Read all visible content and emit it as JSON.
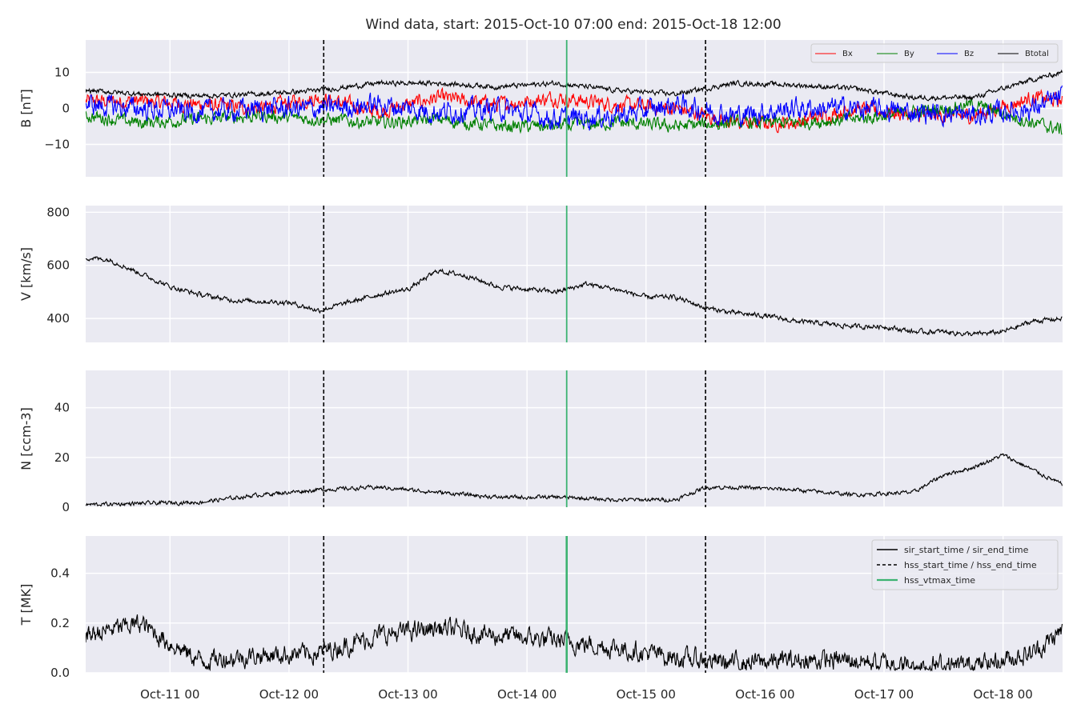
{
  "title": "Wind data, start: 2015-Oct-10 07:00  end: 2015-Oct-18 12:00",
  "colors": {
    "background": "#eaeaf2",
    "grid": "#ffffff",
    "bx": "#ff0000",
    "by": "#008000",
    "bz": "#0000ff",
    "btotal": "#000000",
    "vtmax": "#3cb371"
  },
  "x_axis": {
    "start": "2015-10-10T07:00",
    "end": "2015-10-18T12:00",
    "ticks": [
      {
        "t": "2015-10-11T00:00",
        "label": "Oct-11 00"
      },
      {
        "t": "2015-10-12T00:00",
        "label": "Oct-12 00"
      },
      {
        "t": "2015-10-13T00:00",
        "label": "Oct-13 00"
      },
      {
        "t": "2015-10-14T00:00",
        "label": "Oct-14 00"
      },
      {
        "t": "2015-10-15T00:00",
        "label": "Oct-15 00"
      },
      {
        "t": "2015-10-16T00:00",
        "label": "Oct-16 00"
      },
      {
        "t": "2015-10-17T00:00",
        "label": "Oct-17 00"
      },
      {
        "t": "2015-10-18T00:00",
        "label": "Oct-18 00"
      }
    ]
  },
  "events": {
    "hss_start_time": "2015-10-12T07:00",
    "hss_end_time": "2015-10-15T12:00",
    "hss_vtmax_time": "2015-10-14T08:00"
  },
  "chart_data": [
    {
      "type": "line",
      "ylabel": "B [nT]",
      "ylim": [
        -19,
        19
      ],
      "yticks": [
        10,
        0,
        -10
      ],
      "ytick_labels": [
        "10",
        "0",
        "−10"
      ],
      "grid": true,
      "legend": "top-right",
      "legend_entries": [
        "Bx",
        "By",
        "Bz",
        "Btotal"
      ],
      "series": [
        {
          "name": "Bx",
          "color": "#ff0000",
          "x": [
            "2015-10-10T07:00",
            "2015-10-10T18:00",
            "2015-10-11T06:00",
            "2015-10-11T18:00",
            "2015-10-12T06:00",
            "2015-10-12T18:00",
            "2015-10-13T06:00",
            "2015-10-13T18:00",
            "2015-10-14T06:00",
            "2015-10-14T18:00",
            "2015-10-15T06:00",
            "2015-10-15T18:00",
            "2015-10-16T06:00",
            "2015-10-16T18:00",
            "2015-10-17T06:00",
            "2015-10-17T18:00",
            "2015-10-18T06:00",
            "2015-10-18T12:00"
          ],
          "y": [
            2,
            2,
            1,
            0,
            3,
            -1,
            3,
            1,
            3,
            1,
            0,
            -4,
            -4,
            0,
            -2,
            -2,
            3,
            2
          ]
        },
        {
          "name": "By",
          "color": "#008000",
          "x": [
            "2015-10-10T07:00",
            "2015-10-10T18:00",
            "2015-10-11T06:00",
            "2015-10-11T18:00",
            "2015-10-12T06:00",
            "2015-10-12T18:00",
            "2015-10-13T06:00",
            "2015-10-13T18:00",
            "2015-10-14T06:00",
            "2015-10-14T18:00",
            "2015-10-15T06:00",
            "2015-10-15T18:00",
            "2015-10-16T06:00",
            "2015-10-16T18:00",
            "2015-10-17T06:00",
            "2015-10-17T18:00",
            "2015-10-18T06:00",
            "2015-10-18T12:00"
          ],
          "y": [
            -2,
            -4,
            -3,
            -2,
            -3,
            -4,
            -3,
            -5,
            -5,
            -4,
            -5,
            -4,
            -4,
            -3,
            -1,
            1,
            -4,
            -6
          ]
        },
        {
          "name": "Bz",
          "color": "#0000ff",
          "x": [
            "2015-10-10T07:00",
            "2015-10-10T18:00",
            "2015-10-11T06:00",
            "2015-10-11T18:00",
            "2015-10-12T06:00",
            "2015-10-12T18:00",
            "2015-10-13T06:00",
            "2015-10-13T18:00",
            "2015-10-14T06:00",
            "2015-10-14T18:00",
            "2015-10-15T06:00",
            "2015-10-15T18:00",
            "2015-10-16T06:00",
            "2015-10-16T18:00",
            "2015-10-17T06:00",
            "2015-10-17T18:00",
            "2015-10-18T06:00",
            "2015-10-18T12:00"
          ],
          "y": [
            1,
            0,
            -1,
            0,
            0,
            1,
            -1,
            0,
            -3,
            -2,
            1,
            -2,
            0,
            0,
            -1,
            -2,
            0,
            3
          ]
        },
        {
          "name": "Btotal",
          "color": "#000000",
          "x": [
            "2015-10-10T07:00",
            "2015-10-10T18:00",
            "2015-10-11T06:00",
            "2015-10-11T18:00",
            "2015-10-12T06:00",
            "2015-10-12T18:00",
            "2015-10-13T06:00",
            "2015-10-13T18:00",
            "2015-10-14T06:00",
            "2015-10-14T18:00",
            "2015-10-15T06:00",
            "2015-10-15T18:00",
            "2015-10-16T06:00",
            "2015-10-16T18:00",
            "2015-10-17T06:00",
            "2015-10-17T18:00",
            "2015-10-18T06:00",
            "2015-10-18T12:00"
          ],
          "y": [
            5,
            4,
            3.5,
            4,
            5,
            7,
            7,
            6,
            7,
            5,
            4,
            7,
            6.5,
            5.5,
            3,
            3,
            8,
            10
          ]
        }
      ]
    },
    {
      "type": "line",
      "ylabel": "V [km/s]",
      "ylim": [
        310,
        825
      ],
      "yticks": [
        800,
        600,
        400
      ],
      "ytick_labels": [
        "800",
        "600",
        "400"
      ],
      "grid": true,
      "series": [
        {
          "name": "V",
          "color": "#000000",
          "x": [
            "2015-10-10T07:00",
            "2015-10-10T12:00",
            "2015-10-10T18:00",
            "2015-10-11T00:00",
            "2015-10-11T06:00",
            "2015-10-11T12:00",
            "2015-10-11T18:00",
            "2015-10-12T00:00",
            "2015-10-12T06:00",
            "2015-10-12T12:00",
            "2015-10-12T18:00",
            "2015-10-13T00:00",
            "2015-10-13T06:00",
            "2015-10-13T12:00",
            "2015-10-13T18:00",
            "2015-10-14T00:00",
            "2015-10-14T06:00",
            "2015-10-14T12:00",
            "2015-10-14T18:00",
            "2015-10-15T00:00",
            "2015-10-15T06:00",
            "2015-10-15T12:00",
            "2015-10-15T18:00",
            "2015-10-16T00:00",
            "2015-10-16T06:00",
            "2015-10-16T12:00",
            "2015-10-16T18:00",
            "2015-10-17T00:00",
            "2015-10-17T06:00",
            "2015-10-17T12:00",
            "2015-10-17T18:00",
            "2015-10-18T00:00",
            "2015-10-18T06:00",
            "2015-10-18T12:00"
          ],
          "y": [
            630,
            620,
            570,
            520,
            490,
            470,
            465,
            460,
            430,
            460,
            490,
            510,
            580,
            560,
            520,
            510,
            500,
            530,
            510,
            480,
            480,
            440,
            420,
            410,
            390,
            380,
            370,
            370,
            350,
            350,
            340,
            350,
            390,
            400
          ]
        }
      ]
    },
    {
      "type": "line",
      "ylabel": "N [ccm-3]",
      "ylim": [
        0,
        55
      ],
      "yticks": [
        40,
        20,
        0
      ],
      "ytick_labels": [
        "40",
        "20",
        "0"
      ],
      "grid": true,
      "series": [
        {
          "name": "N",
          "color": "#000000",
          "x": [
            "2015-10-10T07:00",
            "2015-10-10T18:00",
            "2015-10-11T06:00",
            "2015-10-11T18:00",
            "2015-10-12T06:00",
            "2015-10-12T18:00",
            "2015-10-13T06:00",
            "2015-10-13T18:00",
            "2015-10-14T06:00",
            "2015-10-14T18:00",
            "2015-10-15T06:00",
            "2015-10-15T12:00",
            "2015-10-15T18:00",
            "2015-10-16T06:00",
            "2015-10-16T18:00",
            "2015-10-17T06:00",
            "2015-10-17T12:00",
            "2015-10-17T18:00",
            "2015-10-18T00:00",
            "2015-10-18T06:00",
            "2015-10-18T12:00"
          ],
          "y": [
            1,
            1.5,
            2,
            5,
            7,
            8,
            6,
            4,
            4,
            3,
            3,
            8,
            8,
            7,
            5,
            6,
            13,
            16,
            21,
            15,
            9
          ]
        }
      ]
    },
    {
      "type": "line",
      "ylabel": "T [MK]",
      "ylim": [
        0,
        0.55
      ],
      "yticks": [
        0.4,
        0.2,
        0.0
      ],
      "ytick_labels": [
        "0.4",
        "0.2",
        "0.0"
      ],
      "grid": true,
      "legend": "top-right",
      "legend_entries": [
        "sir_start_time / sir_end_time",
        "hss_start_time / hss_end_time",
        "hss_vtmax_time"
      ],
      "series": [
        {
          "name": "T",
          "color": "#000000",
          "x": [
            "2015-10-10T07:00",
            "2015-10-10T18:00",
            "2015-10-11T00:00",
            "2015-10-11T06:00",
            "2015-10-11T18:00",
            "2015-10-12T06:00",
            "2015-10-12T18:00",
            "2015-10-13T06:00",
            "2015-10-13T18:00",
            "2015-10-14T06:00",
            "2015-10-14T18:00",
            "2015-10-15T06:00",
            "2015-10-15T18:00",
            "2015-10-16T06:00",
            "2015-10-16T18:00",
            "2015-10-17T06:00",
            "2015-10-17T18:00",
            "2015-10-18T06:00",
            "2015-10-18T12:00"
          ],
          "y": [
            0.15,
            0.2,
            0.12,
            0.05,
            0.07,
            0.08,
            0.15,
            0.18,
            0.15,
            0.13,
            0.1,
            0.06,
            0.04,
            0.05,
            0.05,
            0.03,
            0.03,
            0.08,
            0.17
          ]
        }
      ]
    }
  ]
}
